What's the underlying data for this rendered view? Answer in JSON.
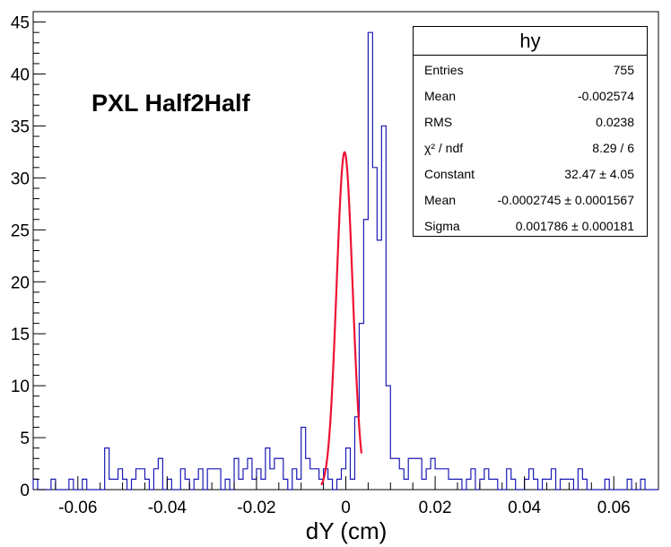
{
  "chart_data": {
    "type": "histogram",
    "annotation": "PXL Half2Half",
    "xlabel": "dY (cm)",
    "ylabel": "",
    "xlim": [
      -0.07,
      0.07
    ],
    "ylim": [
      0,
      46
    ],
    "bin_width": 0.001,
    "x_ticks": [
      -0.06,
      -0.04,
      -0.02,
      0,
      0.02,
      0.04,
      0.06
    ],
    "x_tick_labels": [
      "-0.06",
      "-0.04",
      "-0.02",
      "0",
      "0.02",
      "0.04",
      "0.06"
    ],
    "y_ticks": [
      0,
      5,
      10,
      15,
      20,
      25,
      30,
      35,
      40,
      45
    ],
    "y_tick_labels": [
      "0",
      "5",
      "10",
      "15",
      "20",
      "25",
      "30",
      "35",
      "40",
      "45"
    ],
    "line_color": "#1a1ab4",
    "fit_color": "#ee1133",
    "counts": [
      1,
      0,
      0,
      0,
      1,
      0,
      0,
      0,
      1,
      0,
      0,
      1,
      0,
      0,
      0,
      0,
      4,
      1,
      1,
      2,
      1,
      0,
      1,
      2,
      2,
      1,
      0,
      2,
      3,
      0,
      1,
      0,
      0,
      2,
      1,
      0,
      1,
      2,
      0,
      2,
      2,
      2,
      0,
      1,
      0,
      3,
      1,
      2,
      3,
      1,
      2,
      1,
      4,
      2,
      3,
      3,
      1,
      0,
      2,
      1,
      6,
      3,
      2,
      2,
      1,
      2,
      1,
      0,
      1,
      2,
      4,
      1,
      7,
      16,
      26,
      44,
      31,
      24,
      35,
      10,
      3,
      3,
      2,
      1,
      3,
      3,
      3,
      1,
      2,
      3,
      2,
      2,
      2,
      1,
      1,
      1,
      0,
      1,
      2,
      0,
      1,
      2,
      1,
      1,
      0,
      0,
      2,
      1,
      0,
      0,
      1,
      2,
      1,
      0,
      1,
      1,
      2,
      0,
      1,
      1,
      1,
      0,
      2,
      1,
      0,
      0,
      0,
      0,
      1,
      0,
      0,
      0,
      0,
      1,
      0,
      0,
      1,
      0,
      0,
      0
    ],
    "fit": {
      "function": "gaussian",
      "constant": 32.47,
      "mean": -0.0002745,
      "sigma": 0.001786,
      "range": [
        -0.0055,
        0.0035
      ]
    },
    "stats": {
      "title": "hy",
      "rows": [
        {
          "label": "Entries",
          "value": "755"
        },
        {
          "label": "Mean",
          "value": "-0.002574"
        },
        {
          "label": "RMS",
          "value": "0.0238"
        },
        {
          "label": "χ² / ndf",
          "value": "8.29 / 6"
        },
        {
          "label": "Constant",
          "value": "32.47 ± 4.05"
        },
        {
          "label": "Mean",
          "value": "-0.0002745 ± 0.0001567"
        },
        {
          "label": "Sigma",
          "value": "0.001786 ± 0.000181"
        }
      ]
    }
  }
}
